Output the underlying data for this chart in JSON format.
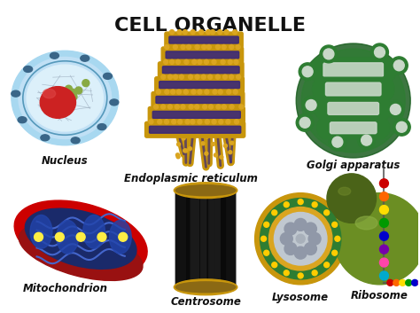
{
  "title": "CELL ORGANELLE",
  "title_fontsize": 16,
  "title_fontweight": "bold",
  "background_color": "#ffffff",
  "labels": {
    "nucleus": "Nucleus",
    "er": "Endoplasmic reticulum",
    "golgi": "Golgi apparatus",
    "mito": "Mitochondrion",
    "centro": "Centrosome",
    "lyso": "Lysosome",
    "ribo": "Ribosome"
  },
  "label_fontsize": 8.5,
  "label_style": "italic",
  "label_fontweight": "bold",
  "colors": {
    "nucleus_outer": "#A8D8F0",
    "nucleus_mid": "#C8E8FA",
    "nucleolus": "#CC2222",
    "nucleus_pore": "#4488AA",
    "er_body": "#C8960C",
    "er_stripe": "#3A2878",
    "er_dot": "#DAA520",
    "golgi_green": "#2E7D32",
    "golgi_light": "#4CAF50",
    "golgi_white": "#E0E8E0",
    "golgi_vesicle": "#388E3C",
    "mito_outer": "#CC0000",
    "mito_dark_red": "#880000",
    "mito_inner_bg": "#1A2A6A",
    "mito_blue_comp": "#2244BB",
    "mito_dot": "#FFEE55",
    "centro_tube": "#111111",
    "centro_ring": "#C8960C",
    "lyso_outer": "#C8960C",
    "lyso_green": "#2E7D32",
    "lyso_inner": "#DAA520",
    "lyso_gray": "#B0B8C0",
    "lyso_vesicle": "#9098A8",
    "ribo_large": "#6B8E23",
    "ribo_small": "#4A6318",
    "bead_colors": [
      "#CC0000",
      "#FF6600",
      "#FFDD00",
      "#009900",
      "#0000CC",
      "#7700AA",
      "#FF44AA",
      "#00AACC",
      "#FF4400",
      "#AADD00",
      "#FFAA00",
      "#0066FF"
    ]
  }
}
